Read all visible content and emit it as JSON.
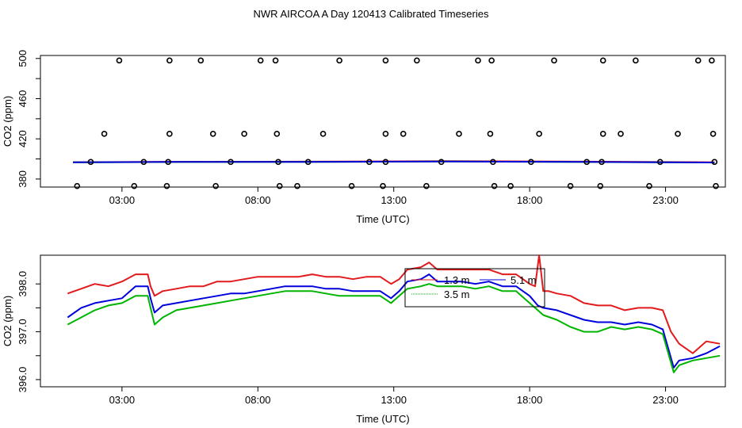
{
  "title": "NWR AIRCOA A  Day 120413  Calibrated Timeseries",
  "colors": {
    "red": "#e31a1c",
    "blue": "#0000dd",
    "green": "#00b400",
    "black": "#000000"
  },
  "chart_data": [
    {
      "type": "scatter",
      "xlabel": "Time (UTC)",
      "ylabel": "CO2 (ppm)",
      "xlim": [
        0,
        25.2
      ],
      "ylim": [
        372,
        503
      ],
      "xticks": [
        3,
        8,
        13,
        18,
        23
      ],
      "xtick_labels": [
        "03:00",
        "08:00",
        "13:00",
        "18:00",
        "23:00"
      ],
      "yticks": [
        380,
        420,
        460,
        500
      ],
      "ytick_labels": [
        "380",
        "420",
        "460",
        "500"
      ],
      "yminor_ticks": [
        400,
        440,
        480
      ],
      "points": [
        [
          2.9,
          498
        ],
        [
          4.75,
          498
        ],
        [
          5.9,
          498
        ],
        [
          8.1,
          498
        ],
        [
          8.65,
          498
        ],
        [
          11.0,
          498
        ],
        [
          12.7,
          498
        ],
        [
          13.85,
          498
        ],
        [
          16.1,
          498
        ],
        [
          16.6,
          498
        ],
        [
          18.9,
          498
        ],
        [
          20.7,
          498
        ],
        [
          21.9,
          498
        ],
        [
          24.2,
          498
        ],
        [
          24.7,
          498
        ],
        [
          2.35,
          425
        ],
        [
          4.75,
          425
        ],
        [
          6.35,
          425
        ],
        [
          7.5,
          425
        ],
        [
          8.7,
          425
        ],
        [
          10.4,
          425
        ],
        [
          12.7,
          425
        ],
        [
          13.35,
          425
        ],
        [
          15.4,
          425
        ],
        [
          16.55,
          425
        ],
        [
          18.35,
          425
        ],
        [
          20.7,
          425
        ],
        [
          21.35,
          425
        ],
        [
          23.45,
          425
        ],
        [
          24.75,
          425
        ],
        [
          1.85,
          397
        ],
        [
          3.8,
          397
        ],
        [
          4.7,
          397
        ],
        [
          7.0,
          397
        ],
        [
          8.75,
          397
        ],
        [
          9.85,
          397
        ],
        [
          12.1,
          397
        ],
        [
          12.7,
          397
        ],
        [
          14.75,
          397
        ],
        [
          16.65,
          397
        ],
        [
          18.05,
          397
        ],
        [
          20.1,
          397
        ],
        [
          20.65,
          397
        ],
        [
          22.8,
          397
        ],
        [
          24.8,
          397
        ],
        [
          1.35,
          373
        ],
        [
          3.45,
          373
        ],
        [
          4.65,
          373
        ],
        [
          6.45,
          373
        ],
        [
          8.8,
          373
        ],
        [
          9.45,
          373
        ],
        [
          11.45,
          373
        ],
        [
          12.6,
          373
        ],
        [
          14.2,
          373
        ],
        [
          16.7,
          373
        ],
        [
          17.3,
          373
        ],
        [
          19.5,
          373
        ],
        [
          20.6,
          373
        ],
        [
          22.4,
          373
        ],
        [
          24.85,
          373
        ]
      ],
      "series": [
        {
          "name": "red",
          "color": "red",
          "x": [
            1.2,
            5,
            10,
            15,
            20,
            24.8
          ],
          "values": [
            396.8,
            397.2,
            397.3,
            397.8,
            397.3,
            396.7
          ]
        },
        {
          "name": "green",
          "color": "green",
          "x": [
            1.2,
            5,
            10,
            15,
            20,
            24.8
          ],
          "values": [
            396.6,
            396.9,
            397.0,
            397.4,
            396.9,
            396.4
          ]
        },
        {
          "name": "blue",
          "color": "blue",
          "x": [
            1.2,
            5,
            10,
            15,
            20,
            24.8
          ],
          "values": [
            396.7,
            397.0,
            397.1,
            397.5,
            397.0,
            396.5
          ]
        }
      ]
    },
    {
      "type": "line",
      "xlabel": "Time (UTC)",
      "ylabel": "CO2 (ppm)",
      "xlim": [
        0,
        25.2
      ],
      "ylim": [
        395.85,
        398.6
      ],
      "xticks": [
        3,
        8,
        13,
        18,
        23
      ],
      "xtick_labels": [
        "03:00",
        "08:00",
        "13:00",
        "18:00",
        "23:00"
      ],
      "yticks": [
        396.0,
        397.0,
        398.0
      ],
      "ytick_labels": [
        "396.0",
        "397.0",
        "398.0"
      ],
      "yminor_ticks": [
        396.5,
        397.5
      ],
      "legend": {
        "placement": "top-center",
        "entries": [
          {
            "label": "1.3 m",
            "color": "red"
          },
          {
            "label": "5.1 m",
            "color": "blue"
          },
          {
            "label": "3.5 m",
            "color": "green"
          }
        ]
      },
      "series": [
        {
          "name": "1.3 m",
          "color": "red",
          "x": [
            1.0,
            1.5,
            2.0,
            2.5,
            3.0,
            3.5,
            3.95,
            4.05,
            4.2,
            4.5,
            5.0,
            5.5,
            6.0,
            6.5,
            7.0,
            7.5,
            8.0,
            8.5,
            9.0,
            9.5,
            10.0,
            10.5,
            11.0,
            11.5,
            12.0,
            12.5,
            12.9,
            13.2,
            13.5,
            14.0,
            14.3,
            14.6,
            15.0,
            15.5,
            16.0,
            16.5,
            17.0,
            17.5,
            18.0,
            18.2,
            18.35,
            18.5,
            18.7,
            19.0,
            19.5,
            20.0,
            20.5,
            21.0,
            21.5,
            22.0,
            22.5,
            22.9,
            23.2,
            23.5,
            24.0,
            24.5,
            25.0
          ],
          "values": [
            397.8,
            397.9,
            398.0,
            397.95,
            398.05,
            398.2,
            398.2,
            397.95,
            397.75,
            397.85,
            397.9,
            397.95,
            397.95,
            398.05,
            398.05,
            398.1,
            398.15,
            398.15,
            398.15,
            398.15,
            398.2,
            398.15,
            398.15,
            398.1,
            398.15,
            398.15,
            398.0,
            398.1,
            398.3,
            398.35,
            398.45,
            398.3,
            398.3,
            398.3,
            398.3,
            398.3,
            398.2,
            398.2,
            398.0,
            397.95,
            398.6,
            397.85,
            397.85,
            397.8,
            397.75,
            397.6,
            397.55,
            397.55,
            397.45,
            397.5,
            397.5,
            397.45,
            397.0,
            396.75,
            396.55,
            396.8,
            396.75
          ]
        },
        {
          "name": "5.1 m",
          "color": "blue",
          "x": [
            1.0,
            1.5,
            2.0,
            2.5,
            3.0,
            3.5,
            3.95,
            4.05,
            4.2,
            4.5,
            5.0,
            5.5,
            6.0,
            6.5,
            7.0,
            7.5,
            8.0,
            8.5,
            9.0,
            9.5,
            10.0,
            10.5,
            11.0,
            11.5,
            12.0,
            12.5,
            12.9,
            13.2,
            13.5,
            14.0,
            14.3,
            14.6,
            15.0,
            15.5,
            16.0,
            16.5,
            17.0,
            17.5,
            18.0,
            18.3,
            18.5,
            19.0,
            19.5,
            20.0,
            20.5,
            21.0,
            21.5,
            22.0,
            22.5,
            22.9,
            23.1,
            23.3,
            23.5,
            24.0,
            24.5,
            25.0
          ],
          "values": [
            397.3,
            397.5,
            397.6,
            397.65,
            397.7,
            397.95,
            397.95,
            397.7,
            397.4,
            397.55,
            397.6,
            397.65,
            397.7,
            397.75,
            397.8,
            397.8,
            397.85,
            397.9,
            397.95,
            397.95,
            397.95,
            397.9,
            397.9,
            397.85,
            397.85,
            397.85,
            397.7,
            397.85,
            398.05,
            398.1,
            398.2,
            398.05,
            398.05,
            398.05,
            398.0,
            398.05,
            397.95,
            397.95,
            397.75,
            397.55,
            397.5,
            397.45,
            397.35,
            397.25,
            397.2,
            397.2,
            397.15,
            397.2,
            397.15,
            397.05,
            396.65,
            396.25,
            396.4,
            396.45,
            396.55,
            396.7
          ]
        },
        {
          "name": "3.5 m",
          "color": "green",
          "x": [
            1.0,
            1.5,
            2.0,
            2.5,
            3.0,
            3.5,
            3.95,
            4.05,
            4.2,
            4.5,
            5.0,
            5.5,
            6.0,
            6.5,
            7.0,
            7.5,
            8.0,
            8.5,
            9.0,
            9.5,
            10.0,
            10.5,
            11.0,
            11.5,
            12.0,
            12.5,
            12.9,
            13.2,
            13.5,
            14.0,
            14.3,
            14.6,
            15.0,
            15.5,
            16.0,
            16.5,
            17.0,
            17.5,
            18.0,
            18.3,
            18.5,
            19.0,
            19.5,
            20.0,
            20.5,
            21.0,
            21.5,
            22.0,
            22.5,
            22.9,
            23.1,
            23.3,
            23.5,
            24.0,
            24.5,
            25.0
          ],
          "values": [
            397.15,
            397.3,
            397.45,
            397.55,
            397.6,
            397.75,
            397.75,
            397.5,
            397.15,
            397.3,
            397.45,
            397.5,
            397.55,
            397.6,
            397.65,
            397.7,
            397.75,
            397.8,
            397.85,
            397.85,
            397.85,
            397.8,
            397.75,
            397.75,
            397.75,
            397.75,
            397.6,
            397.75,
            397.9,
            397.95,
            398.0,
            397.95,
            397.95,
            397.95,
            397.9,
            397.95,
            397.85,
            397.85,
            397.6,
            397.45,
            397.35,
            397.25,
            397.1,
            397.0,
            397.0,
            397.1,
            397.05,
            397.1,
            397.05,
            396.95,
            396.55,
            396.15,
            396.3,
            396.4,
            396.45,
            396.5
          ]
        }
      ]
    }
  ]
}
